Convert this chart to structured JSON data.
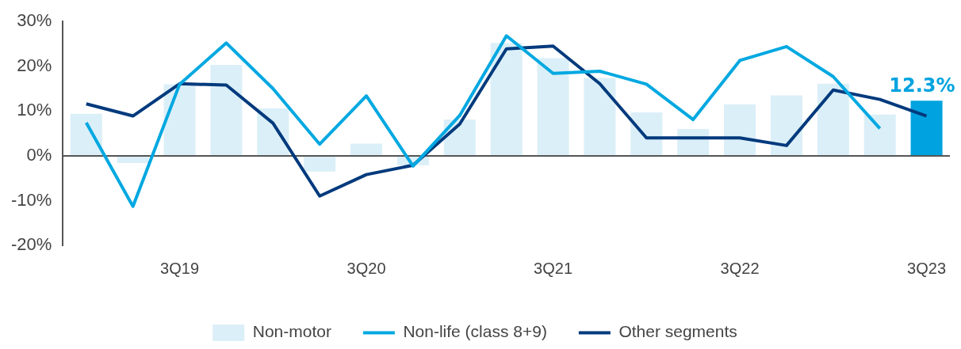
{
  "chart_data": {
    "type": "bar",
    "categories": [
      null,
      null,
      "3Q19",
      null,
      null,
      null,
      "3Q20",
      null,
      null,
      null,
      "3Q21",
      null,
      null,
      null,
      "3Q22",
      null,
      null,
      null,
      "3Q23"
    ],
    "series": [
      {
        "name": "Non-motor",
        "color": "#dbeff8",
        "colors": [
          "#dbeff8",
          "#dbeff8",
          "#dbeff8",
          "#dbeff8",
          "#dbeff8",
          "#dbeff8",
          "#dbeff8",
          "#dbeff8",
          "#dbeff8",
          "#dbeff8",
          "#dbeff8",
          "#dbeff8",
          "#dbeff8",
          "#dbeff8",
          "#dbeff8",
          "#dbeff8",
          "#dbeff8",
          "#dbeff8",
          "#00a3e0"
        ],
        "values": [
          9.4,
          -1.6,
          16.0,
          20.3,
          10.6,
          -3.5,
          2.7,
          -2.1,
          8.1,
          25.2,
          21.8,
          17.4,
          9.7,
          6.0,
          11.5,
          13.5,
          16.1,
          9.2,
          12.3
        ],
        "value_labels": [
          null,
          null,
          null,
          null,
          null,
          null,
          null,
          null,
          null,
          null,
          null,
          null,
          null,
          null,
          null,
          null,
          null,
          null,
          "12.3%"
        ]
      },
      {
        "name": "Non-life (class 8+9)",
        "type": "line",
        "color": "#00a8e1",
        "values": [
          7.4,
          -11.3,
          16.0,
          25.2,
          15.0,
          2.6,
          13.4,
          -2.3,
          9.0,
          26.8,
          18.4,
          18.9,
          16.0,
          8.1,
          21.3,
          24.4,
          17.7,
          6.1,
          null
        ]
      },
      {
        "name": "Other segments",
        "type": "line",
        "color": "#003a7d",
        "values": [
          11.6,
          8.9,
          16.1,
          15.8,
          7.3,
          -9.0,
          -4.2,
          -2.1,
          7.1,
          23.9,
          24.5,
          16.1,
          4.0,
          4.0,
          4.0,
          2.3,
          14.7,
          12.6,
          8.9
        ]
      }
    ],
    "ylim": [
      -20,
      30
    ],
    "yticks": [
      {
        "value": -20,
        "label": "-20%"
      },
      {
        "value": -10,
        "label": "-10%"
      },
      {
        "value": 0,
        "label": "0%"
      },
      {
        "value": 10,
        "label": "10%"
      },
      {
        "value": 20,
        "label": "20%"
      },
      {
        "value": 30,
        "label": "30%"
      }
    ],
    "legend": "bottom",
    "marker": "none",
    "line_style": "solid"
  }
}
